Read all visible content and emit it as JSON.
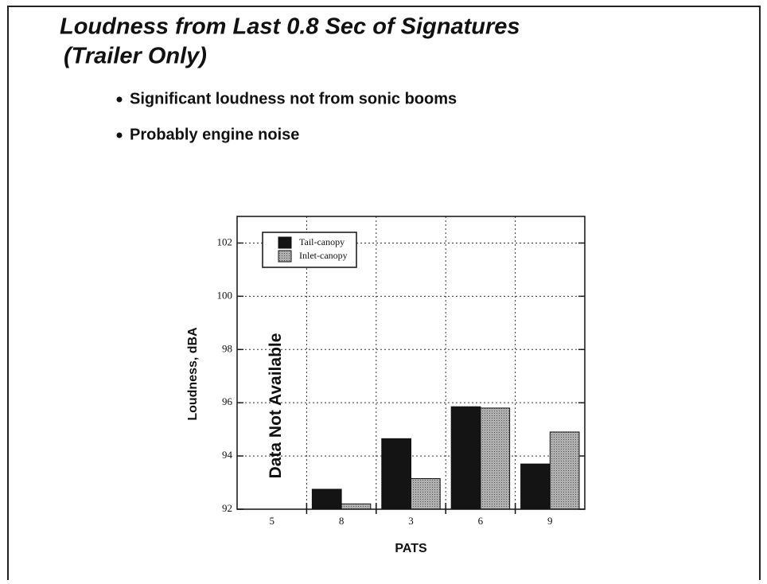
{
  "slide": {
    "title_line1": "Loudness from Last 0.8 Sec of Signatures",
    "title_line2": "(Trailer Only)",
    "bullets": [
      "Significant loudness not from sonic booms",
      "Probably engine noise"
    ]
  },
  "chart_data": {
    "type": "bar",
    "x_label": "PATS",
    "y_label": "Loudness, dBA",
    "annotation": "Data Not Available",
    "categories": [
      "5",
      "8",
      "3",
      "6",
      "9"
    ],
    "series": [
      {
        "name": "Tail-canopy",
        "color": "#141414",
        "values": [
          null,
          92.75,
          94.65,
          95.85,
          93.7
        ]
      },
      {
        "name": "Inlet-canopy",
        "color": "#9c9c9c",
        "values": [
          null,
          92.2,
          93.15,
          95.8,
          94.9
        ]
      }
    ],
    "ylim": [
      92,
      103
    ],
    "yticks": [
      92,
      94,
      96,
      98,
      100,
      102
    ],
    "grid": true,
    "legend": "upper left"
  }
}
